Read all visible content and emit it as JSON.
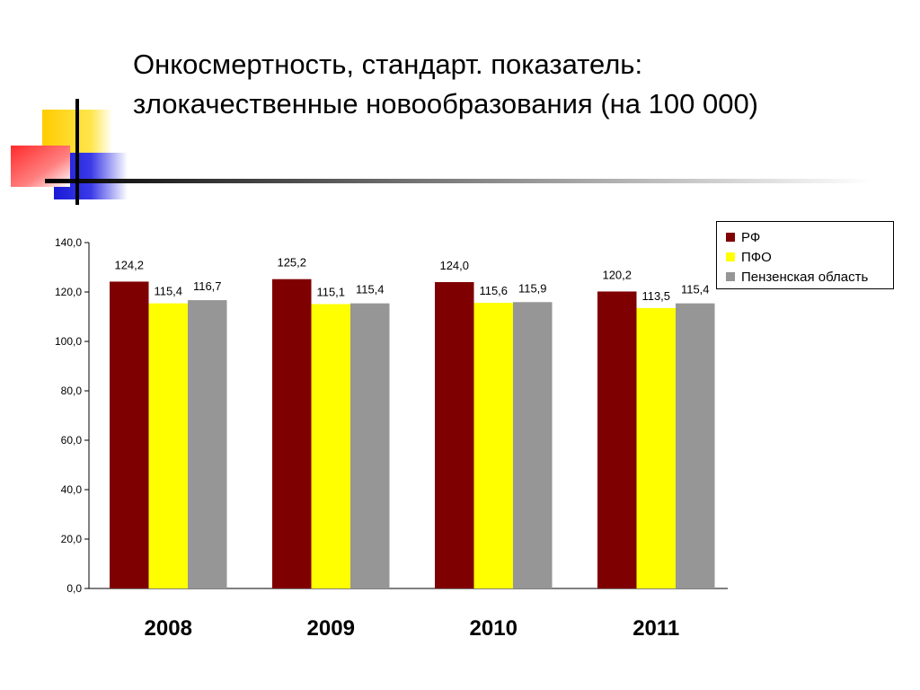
{
  "slide": {
    "title_line1": "Онкосмертность, стандарт. показатель:",
    "title_line2": "злокачественные новообразования (на 100 000)"
  },
  "chart_data": {
    "type": "bar",
    "categories": [
      "2008",
      "2009",
      "2010",
      "2011"
    ],
    "series": [
      {
        "name": "РФ",
        "color": "#7f0000",
        "values": [
          124.2,
          125.2,
          124.0,
          120.2
        ],
        "labels": [
          "124,2",
          "125,2",
          "124,0",
          "120,2"
        ]
      },
      {
        "name": "ПФО",
        "color": "#ffff00",
        "values": [
          115.4,
          115.1,
          115.6,
          113.5
        ],
        "labels": [
          "115,4",
          "115,1",
          "115,6",
          "113,5"
        ]
      },
      {
        "name": "Пензенская область",
        "color": "#969696",
        "values": [
          116.7,
          115.4,
          115.9,
          115.4
        ],
        "labels": [
          "116,7",
          "115,4",
          "115,9",
          "115,4"
        ]
      }
    ],
    "yticks": [
      "0,0",
      "20,0",
      "40,0",
      "60,0",
      "80,0",
      "100,0",
      "120,0",
      "140,0"
    ],
    "ylim": [
      0,
      140
    ],
    "grid": false,
    "legend_position": "top-right",
    "xlabel": "",
    "ylabel": ""
  }
}
